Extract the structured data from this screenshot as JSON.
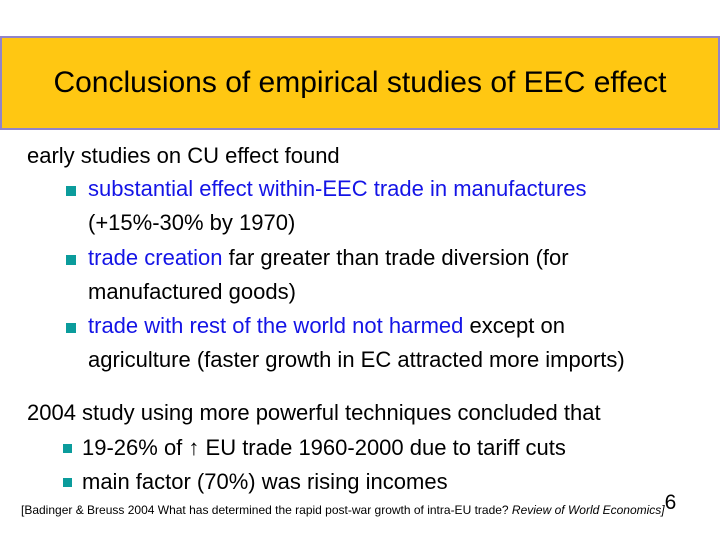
{
  "title": "Conclusions of empirical studies of EEC effect",
  "colors": {
    "banner_yellow": "#FFC712",
    "banner_border": "#9184CA",
    "link_blue": "#1414E6",
    "bullet_teal": "#0B9C9C"
  },
  "body": {
    "intro1": "early studies on CU effect found",
    "bullets1": [
      {
        "line1_blue": "substantial effect within-EEC trade in manufactures",
        "line2_black": "(+15%-30% by 1970)"
      },
      {
        "line1_blue": "trade creation",
        "line1_black": " far greater than trade diversion (for",
        "line2_black": "manufactured goods)"
      },
      {
        "line1_blue": "trade with rest of the world not harmed",
        "line1_black": " except on",
        "line2_black": "agriculture (faster growth in EC attracted more imports)"
      }
    ],
    "intro2": "2004 study using more powerful techniques concluded that",
    "bullets2": [
      {
        "line1_black": "19-26% of ↑ EU trade 1960-2000 due to tariff cuts"
      },
      {
        "line1_black": "main factor (70%) was rising incomes"
      }
    ]
  },
  "footer": {
    "citation_regular": "[Badinger & Breuss 2004 What has determined the rapid post-war growth of intra-EU trade? ",
    "citation_italic": "Review of World Economics]",
    "page_number": "6"
  }
}
